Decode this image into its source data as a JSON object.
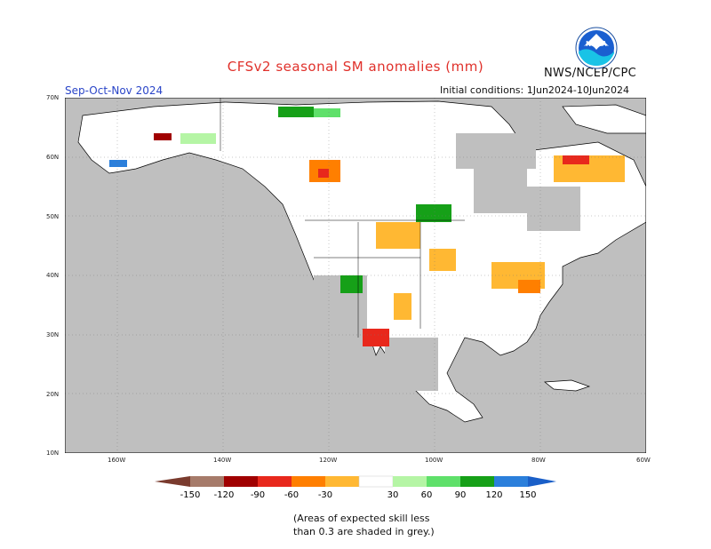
{
  "header": {
    "title": "CFSv2 seasonal SM anomalies (mm)",
    "agency": "NWS/NCEP/CPC",
    "logo_text": "NOAA",
    "season": "Sep-Oct-Nov 2024",
    "initial_conditions": "Initial conditions: 1Jun2024-10Jun2024"
  },
  "map": {
    "lat_labels": [
      "70N",
      "60N",
      "50N",
      "40N",
      "30N",
      "20N",
      "10N"
    ],
    "lon_labels": [
      "160W",
      "140W",
      "120W",
      "100W",
      "80W",
      "60W"
    ],
    "lat_range": [
      10,
      70
    ],
    "lon_range": [
      -170,
      -60
    ],
    "colors": {
      "ocean": "#ffffff",
      "land": "#ffffff",
      "skill_mask": "#bfbfbf",
      "border": "#000000"
    }
  },
  "legend": {
    "ticks": [
      "-150",
      "-120",
      "-90",
      "-60",
      "-30",
      "30",
      "60",
      "90",
      "120",
      "150"
    ],
    "colors": [
      "#7a3b2e",
      "#a67b6a",
      "#a00000",
      "#e8281c",
      "#ff7f00",
      "#ffb833",
      "#ffffff",
      "#b5f5a5",
      "#5fe06a",
      "#16a018",
      "#2b7fdb",
      "#1a5fc8"
    ]
  },
  "footnote": {
    "line1": "(Areas of expected skill less",
    "line2": "than 0.3 are shaded in grey.)"
  }
}
